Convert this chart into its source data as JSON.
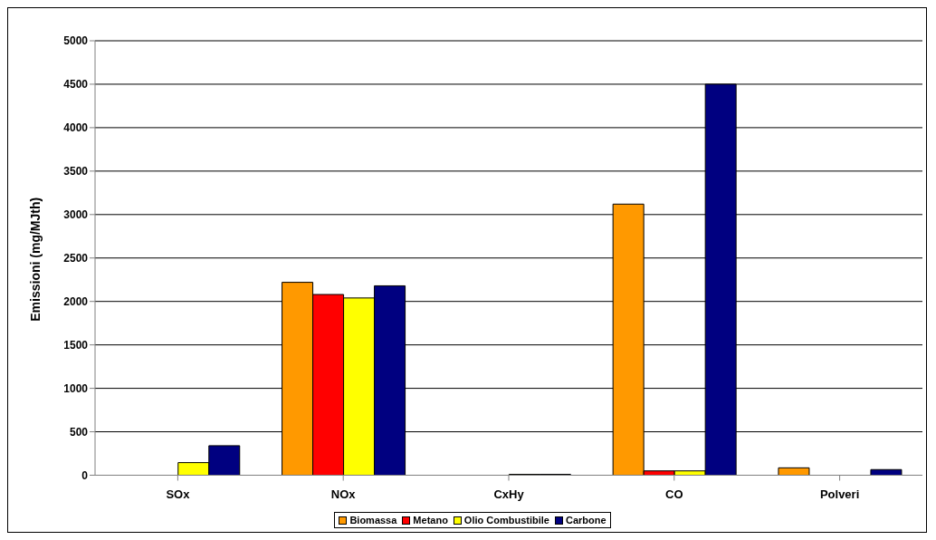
{
  "chart_data": {
    "type": "bar",
    "ylabel": "Emissioni (mg/MJth)",
    "categories": [
      "SOx",
      "NOx",
      "CxHy",
      "CO",
      "Polveri"
    ],
    "series": [
      {
        "name": "Biomassa",
        "color": "#ff9900",
        "values": [
          0,
          2220,
          0,
          3120,
          85
        ]
      },
      {
        "name": "Metano",
        "color": "#ff0000",
        "values": [
          0,
          2080,
          0,
          50,
          0
        ]
      },
      {
        "name": "Olio Combustibile",
        "color": "#ffff00",
        "values": [
          145,
          2040,
          10,
          50,
          0
        ]
      },
      {
        "name": "Carbone",
        "color": "#000080",
        "values": [
          340,
          2180,
          10,
          4500,
          65
        ]
      }
    ],
    "ylim": [
      0,
      5000
    ],
    "yticks": [
      0,
      500,
      1000,
      1500,
      2000,
      2500,
      3000,
      3500,
      4000,
      4500,
      5000
    ],
    "grid": "y",
    "legend": "bottom"
  }
}
